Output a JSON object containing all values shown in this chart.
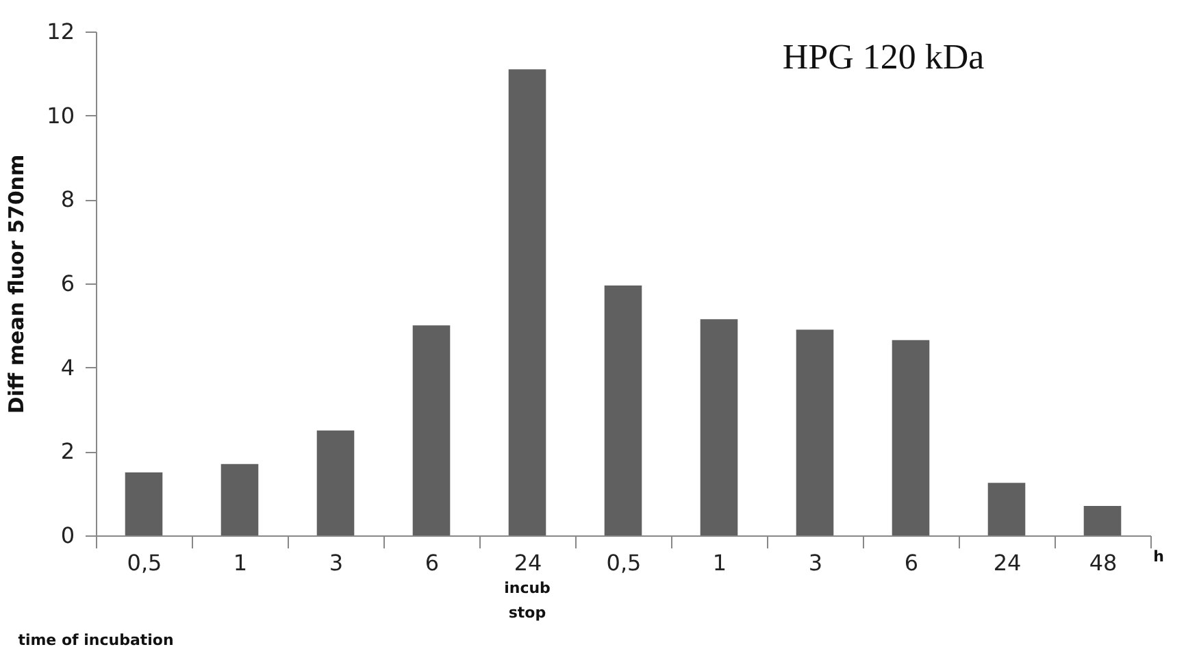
{
  "chart_data": {
    "type": "bar",
    "title": "HPG 120 kDa",
    "ylabel": "Diff mean fluor 570nm",
    "categories": [
      "0,5",
      "1",
      "3",
      "6",
      "24",
      "0,5",
      "1",
      "3",
      "6",
      "24",
      "48"
    ],
    "values": [
      1.5,
      1.7,
      2.5,
      5.0,
      11.1,
      5.95,
      5.15,
      4.9,
      4.65,
      1.25,
      0.7
    ],
    "color": "#606060",
    "ylim": [
      0,
      12
    ],
    "yticks": [
      0,
      2,
      4,
      6,
      8,
      10,
      12
    ],
    "grid": false,
    "annotations": [
      "h",
      "incub stop",
      "time of incubation"
    ]
  }
}
